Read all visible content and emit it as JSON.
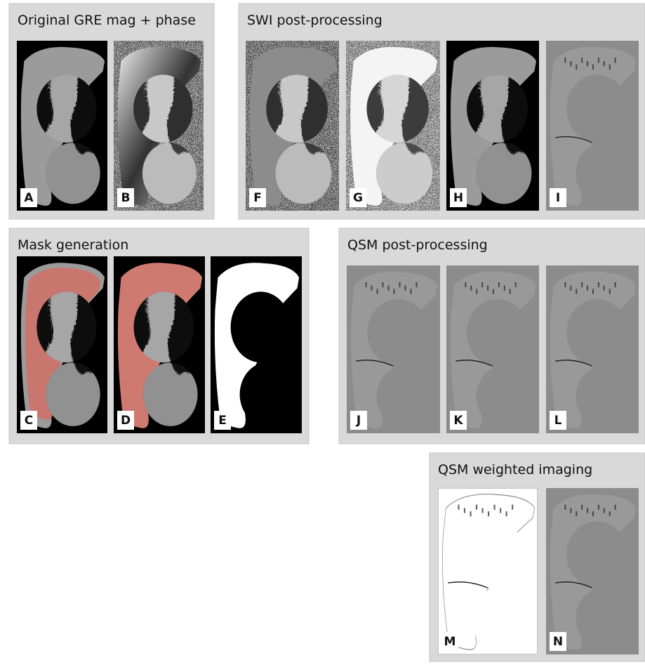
{
  "panels": [
    {
      "title": "Original GRE mag + phase",
      "images": [
        {
          "label": "A"
        },
        {
          "label": "B"
        }
      ]
    },
    {
      "title": "SWI post-processing",
      "images": [
        {
          "label": "F"
        },
        {
          "label": "G"
        },
        {
          "label": "H"
        },
        {
          "label": "I"
        }
      ]
    },
    {
      "title": "Mask generation",
      "images": [
        {
          "label": "C"
        },
        {
          "label": "D"
        },
        {
          "label": "E"
        }
      ]
    },
    {
      "title": "QSM post-processing",
      "images": [
        {
          "label": "J"
        },
        {
          "label": "K"
        },
        {
          "label": "L"
        }
      ]
    },
    {
      "title": "QSM weighted imaging",
      "images": [
        {
          "label": "M"
        },
        {
          "label": "N"
        }
      ]
    }
  ]
}
